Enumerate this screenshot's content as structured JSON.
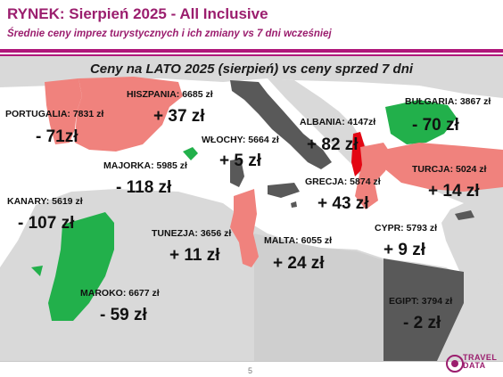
{
  "header": {
    "title": "RYNEK: Sierpień 2025 - All Inclusive",
    "subtitle": "Średnie ceny imprez turystycznych i ich zmiany vs 7 dni wcześniej"
  },
  "chart_data": {
    "type": "map",
    "title": "Ceny na LATO 2025 (sierpień) vs ceny sprzed 7 dni",
    "unit": "zł",
    "colors": {
      "increase": "#f0827d",
      "decrease": "#22b04b",
      "no_change": "#595959",
      "highlight": "#e30613",
      "background_land": "#d9d9d9"
    },
    "destinations": [
      {
        "name": "PORTUGALIA",
        "label": "PORTUGALIA: 7831 zł",
        "price": 7831,
        "change": -71,
        "change_label": "- 71zł",
        "trend": "decrease"
      },
      {
        "name": "HISZPANIA",
        "label": "HISZPANIA: 6685 zł",
        "price": 6685,
        "change": 37,
        "change_label": "+ 37 zł",
        "trend": "increase"
      },
      {
        "name": "MAJORKA",
        "label": "MAJORKA: 5985 zł",
        "price": 5985,
        "change": -118,
        "change_label": "- 118 zł",
        "trend": "decrease"
      },
      {
        "name": "WŁOCHY",
        "label": "WŁOCHY: 5664 zł",
        "price": 5664,
        "change": 5,
        "change_label": "+ 5 zł",
        "trend": "no_change"
      },
      {
        "name": "ALBANIA",
        "label": "ALBANIA: 4147zł",
        "price": 4147,
        "change": 82,
        "change_label": "+ 82 zł",
        "trend": "highlight"
      },
      {
        "name": "BUŁGARIA",
        "label": "BUŁGARIA: 3867 zł",
        "price": 3867,
        "change": -70,
        "change_label": "- 70 zł",
        "trend": "decrease"
      },
      {
        "name": "TURCJA",
        "label": "TURCJA: 5024 zł",
        "price": 5024,
        "change": 14,
        "change_label": "+ 14 zł",
        "trend": "increase"
      },
      {
        "name": "GRECJA",
        "label": "GRECJA: 5874 zł",
        "price": 5874,
        "change": 43,
        "change_label": "+ 43 zł",
        "trend": "increase"
      },
      {
        "name": "KANARY",
        "label": "KANARY: 5619 zł",
        "price": 5619,
        "change": -107,
        "change_label": "- 107 zł",
        "trend": "decrease"
      },
      {
        "name": "TUNEZJA",
        "label": "TUNEZJA: 3656 zł",
        "price": 3656,
        "change": 11,
        "change_label": "+ 11 zł",
        "trend": "increase"
      },
      {
        "name": "MALTA",
        "label": "MALTA: 6055 zł",
        "price": 6055,
        "change": 24,
        "change_label": "+ 24 zł",
        "trend": "no_change"
      },
      {
        "name": "CYPR",
        "label": "CYPR: 5793 zł",
        "price": 5793,
        "change": 9,
        "change_label": "+ 9 zł",
        "trend": "no_change"
      },
      {
        "name": "MAROKO",
        "label": "MAROKO: 6677 zł",
        "price": 6677,
        "change": -59,
        "change_label": "- 59 zł",
        "trend": "decrease"
      },
      {
        "name": "EGIPT",
        "label": "EGIPT: 3794 zł",
        "price": 3794,
        "change": -2,
        "change_label": "- 2 zł",
        "trend": "no_change"
      }
    ]
  },
  "footer": {
    "page_number": "5",
    "logo_text_line1": "TRAVEL",
    "logo_text_line2": "DATA"
  }
}
